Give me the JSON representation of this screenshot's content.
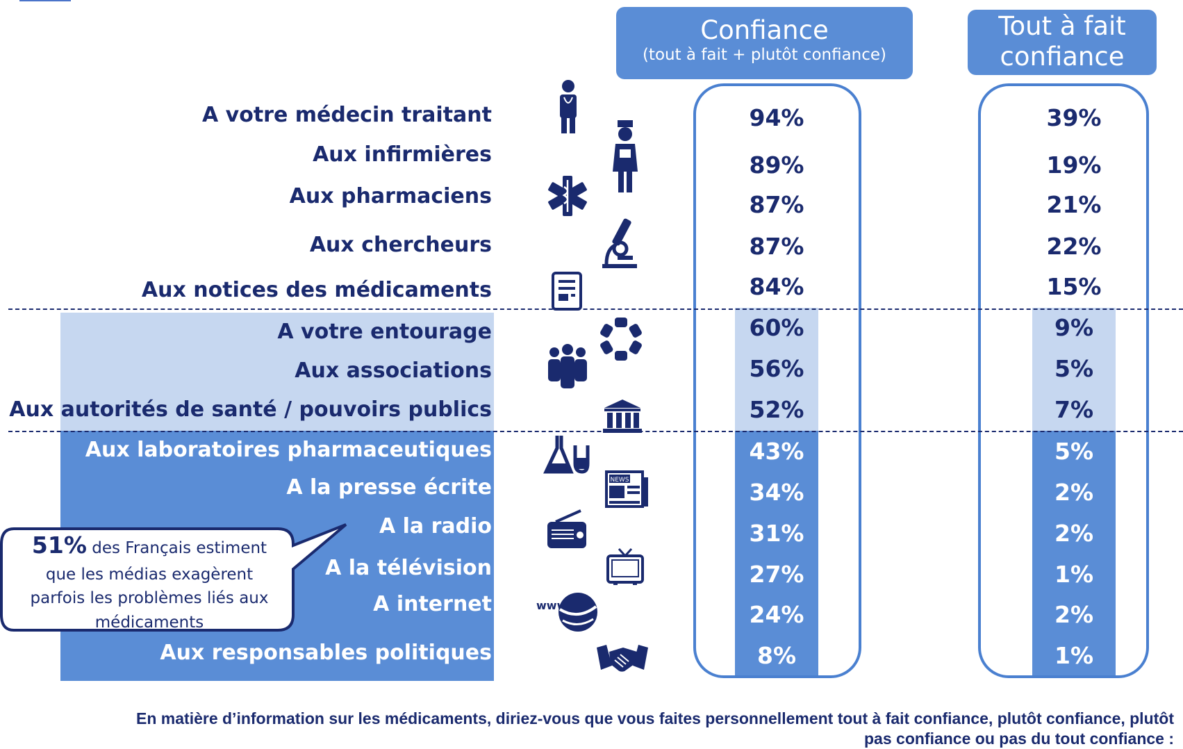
{
  "headers": {
    "confiance_title": "Confiance",
    "confiance_sub": "(tout à fait + plutôt confiance)",
    "tout_line1": "Tout à fait",
    "tout_line2": "confiance"
  },
  "callout": {
    "big_value": "51%",
    "text_line1": " des Français  estiment",
    "text_line2": "que les médias exagèrent",
    "text_line3": "parfois les problèmes liés aux",
    "text_line4": "médicaments"
  },
  "question": {
    "line1": "En matière d’information sur les médicaments,  diriez-vous que vous faites personnellement tout à fait confiance, plutôt confiance, plutôt",
    "line2": "pas confiance ou pas du tout confiance :"
  },
  "colors": {
    "dark_blue": "#1a2a6e",
    "header_blue": "#5a8dd6",
    "light_band": "#c6d7f0",
    "frame": "#4a80d0"
  },
  "chart_data": {
    "type": "table",
    "columns": [
      "Confiance (tout à fait + plutôt confiance)",
      "Tout à fait confiance"
    ],
    "rows": [
      {
        "label": "A votre médecin traitant",
        "confiance": "94%",
        "tout": "39%",
        "group": "white",
        "icon": "doctor-icon"
      },
      {
        "label": "Aux infirmières",
        "confiance": "89%",
        "tout": "19%",
        "group": "white",
        "icon": "nurse-icon"
      },
      {
        "label": "Aux pharmaciens",
        "confiance": "87%",
        "tout": "21%",
        "group": "white",
        "icon": "star-of-life-icon"
      },
      {
        "label": "Aux chercheurs",
        "confiance": "87%",
        "tout": "22%",
        "group": "white",
        "icon": "microscope-icon"
      },
      {
        "label": "Aux notices des médicaments",
        "confiance": "84%",
        "tout": "15%",
        "group": "white",
        "icon": "document-icon"
      },
      {
        "label": "A votre entourage",
        "confiance": "60%",
        "tout": "9%",
        "group": "light",
        "icon": "circle-of-hands-icon"
      },
      {
        "label": "Aux associations",
        "confiance": "56%",
        "tout": "5%",
        "group": "light",
        "icon": "group-people-icon"
      },
      {
        "label": "Aux autorités de santé / pouvoirs publics",
        "confiance": "52%",
        "tout": "7%",
        "group": "light",
        "icon": "government-building-icon"
      },
      {
        "label": "Aux laboratoires pharmaceutiques",
        "confiance": "43%",
        "tout": "5%",
        "group": "dark",
        "icon": "lab-flask-icon"
      },
      {
        "label": "A la presse écrite",
        "confiance": "34%",
        "tout": "2%",
        "group": "dark",
        "icon": "newspaper-icon"
      },
      {
        "label": "A la radio",
        "confiance": "31%",
        "tout": "2%",
        "group": "dark",
        "icon": "radio-icon"
      },
      {
        "label": "A la télévision",
        "confiance": "27%",
        "tout": "1%",
        "group": "dark",
        "icon": "television-icon"
      },
      {
        "label": "A internet",
        "confiance": "24%",
        "tout": "2%",
        "group": "dark",
        "icon": "globe-www-icon"
      },
      {
        "label": "Aux responsables politiques",
        "confiance": "8%",
        "tout": "1%",
        "group": "dark",
        "icon": "handshake-icon"
      }
    ]
  }
}
